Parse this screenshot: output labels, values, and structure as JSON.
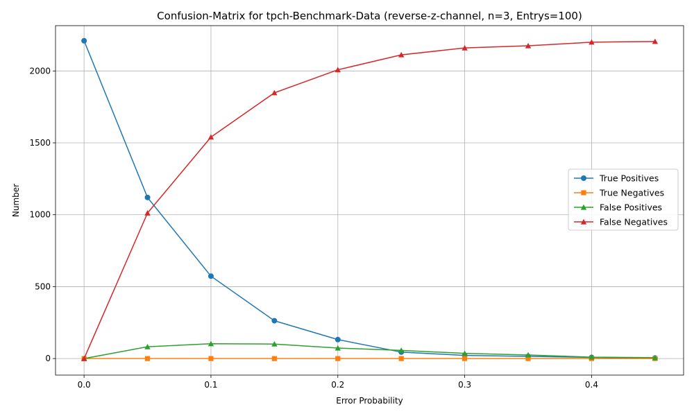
{
  "chart_data": {
    "type": "line",
    "title": "Confusion-Matrix for tpch-Benchmark-Data (reverse-z-channel, n=3, Entrys=100)",
    "xlabel": "Error Probability",
    "ylabel": "Number",
    "xlim": [
      -0.0225,
      0.4725
    ],
    "ylim": [
      -115,
      2315
    ],
    "x_ticks": [
      0.0,
      0.1,
      0.2,
      0.3,
      0.4
    ],
    "x_tick_labels": [
      "0.0",
      "0.1",
      "0.2",
      "0.3",
      "0.4"
    ],
    "y_ticks": [
      0,
      500,
      1000,
      1500,
      2000
    ],
    "y_tick_labels": [
      "0",
      "500",
      "1000",
      "1500",
      "2000"
    ],
    "grid": true,
    "legend_position": "center-right",
    "x": [
      0.0,
      0.05,
      0.1,
      0.15,
      0.2,
      0.25,
      0.3,
      0.35,
      0.4,
      0.45
    ],
    "series": [
      {
        "name": "True Positives",
        "color": "#1f77b4",
        "marker": "circle",
        "values": [
          2210,
          1120,
          573,
          263,
          132,
          45,
          22,
          15,
          8,
          4
        ]
      },
      {
        "name": "True Negatives",
        "color": "#ff7f0e",
        "marker": "square",
        "values": [
          0,
          0,
          0,
          0,
          0,
          0,
          0,
          0,
          0,
          0
        ]
      },
      {
        "name": "False Positives",
        "color": "#2ca02c",
        "marker": "triangle",
        "values": [
          0,
          82,
          103,
          101,
          73,
          57,
          36,
          25,
          10,
          6
        ]
      },
      {
        "name": "False Negatives",
        "color": "#d62728",
        "marker": "triangle",
        "values": [
          0,
          1012,
          1540,
          1848,
          2008,
          2112,
          2160,
          2175,
          2200,
          2205
        ]
      }
    ]
  }
}
